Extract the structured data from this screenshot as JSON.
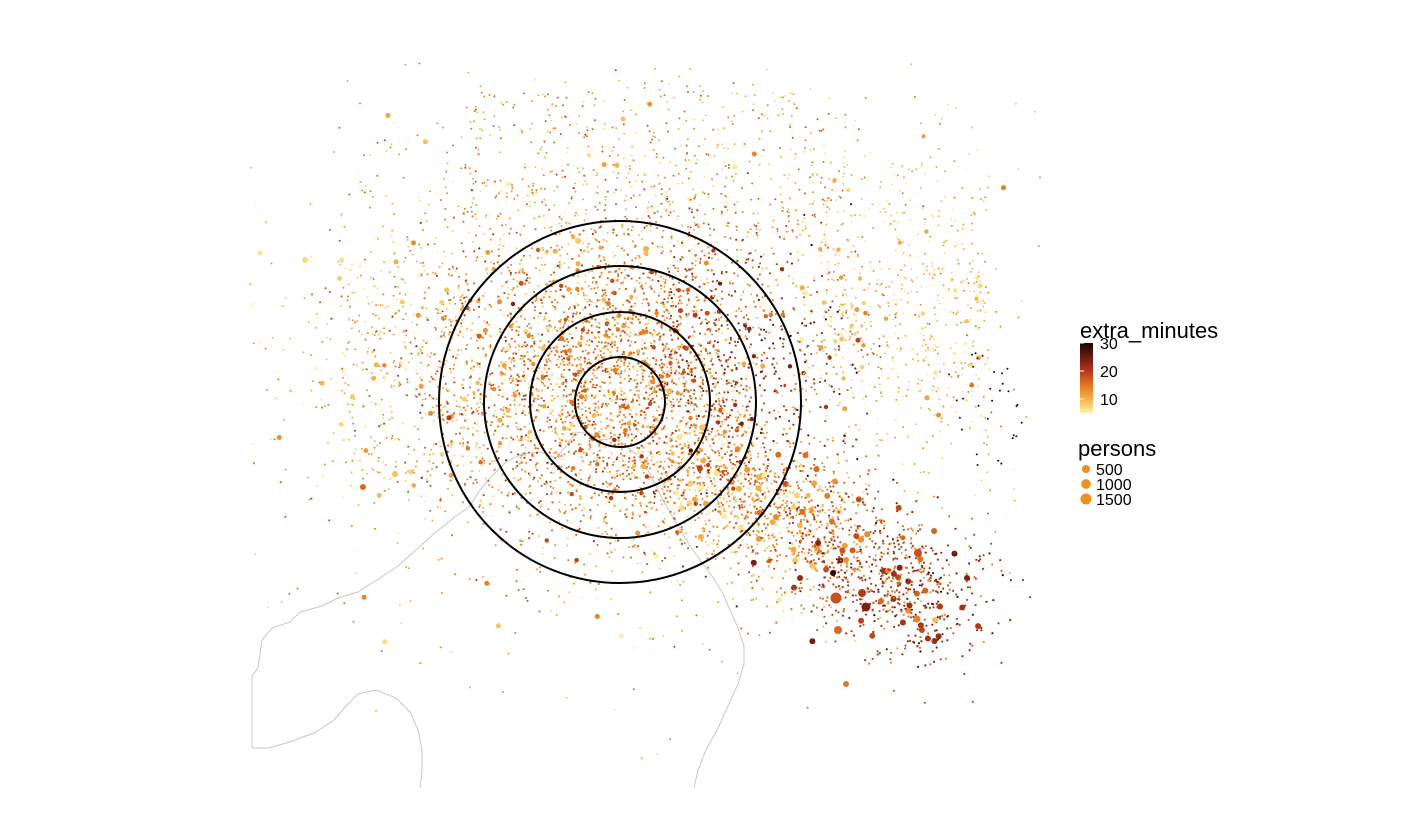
{
  "legend": {
    "color": {
      "title": "extra_minutes",
      "breaks": [
        {
          "value": 30,
          "label": "30"
        },
        {
          "value": 20,
          "label": "20"
        },
        {
          "value": 10,
          "label": "10"
        }
      ],
      "range": [
        5,
        30
      ],
      "gradient": [
        "#fff0a8",
        "#f6b24a",
        "#e2761f",
        "#b03a1a",
        "#6a1a10",
        "#1a0706"
      ]
    },
    "size": {
      "title": "persons",
      "breaks": [
        {
          "value": 500,
          "label": "500"
        },
        {
          "value": 1000,
          "label": "1000"
        },
        {
          "value": 1500,
          "label": "1500"
        }
      ],
      "color": "#ec9020"
    }
  },
  "rings": {
    "count": 4,
    "color": "#000000"
  },
  "coastline_color": "#c8c8c8"
}
